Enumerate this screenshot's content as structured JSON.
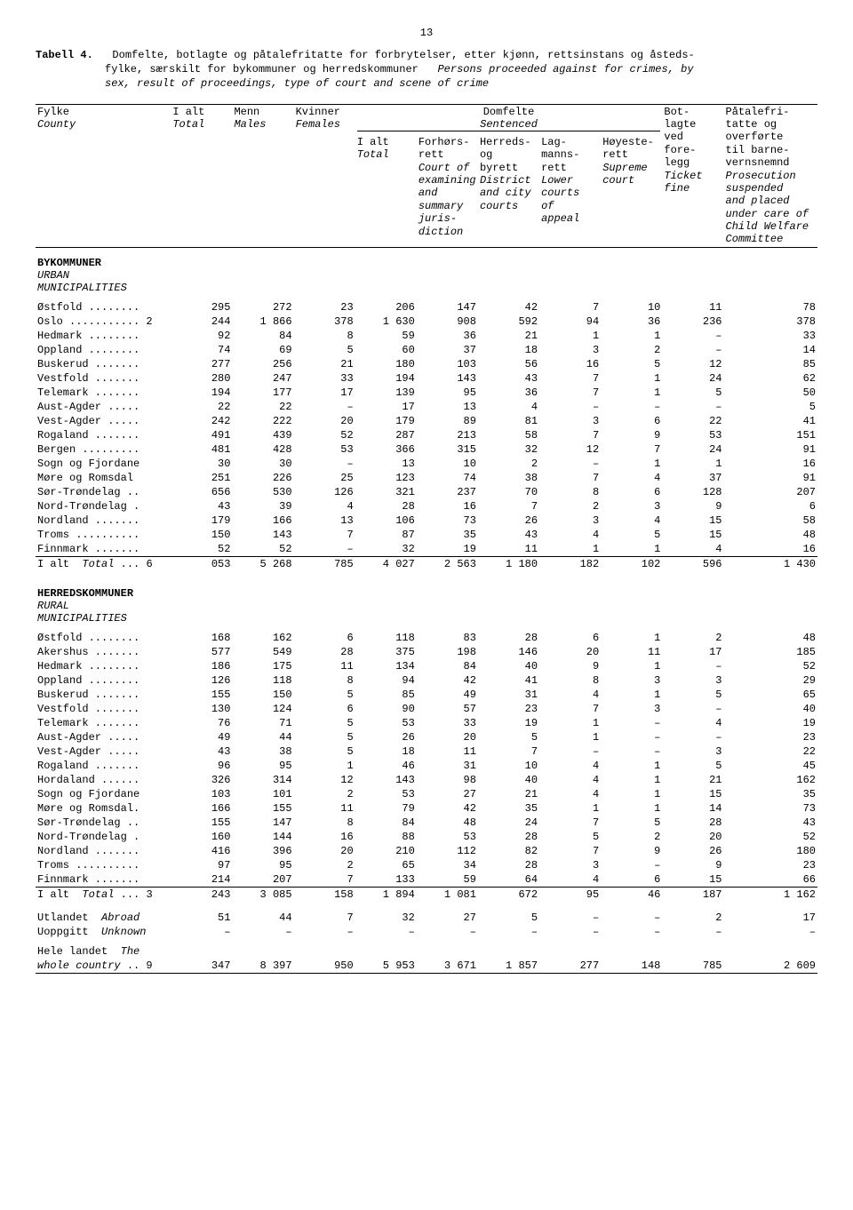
{
  "pageNumber": "13",
  "caption": {
    "label": "Tabell 4.",
    "line1": "Domfelte, botlagte og påtalefritatte for forbrytelser, etter kjønn, rettsinstans og åsteds-",
    "line2": "fylke, særskilt for bykommuner og herredskommuner",
    "line2i": "Persons proceeded against for crimes, by",
    "line3i": "sex, result of proceedings, type of court and scene of crime"
  },
  "headers": {
    "county": "Fylke",
    "countyI": "County",
    "total": "I alt",
    "totalI": "Total",
    "males": "Menn",
    "malesI": "Males",
    "females": "Kvinner",
    "femalesI": "Females",
    "sentencedGroup": "Domfelte",
    "sentencedGroupI": "Sentenced",
    "sentTotal": "I alt",
    "sentTotalI": "Total",
    "col5": "Forhørs-\nrett",
    "col5i": "Court of\nexamining\nand\nsummary\njuris-\ndiction",
    "col6": "Herreds-\nog\nbyrett",
    "col6i": "District\nand city\ncourts",
    "col7": "Lag-\nmanns-\nrett",
    "col7i": "Lower\ncourts\nof\nappeal",
    "col8": "Høyeste-\nrett",
    "col8i": "Supreme\ncourt",
    "col9": "Bot-\nlagte\nved\nfore-\nlegg",
    "col9i": "Ticket\nfine",
    "col10": "Påtalefri-\ntatte og\noverførte\ntil barne-\nvernsnemnd",
    "col10i": "Prosecution\nsuspended\nand placed\nunder care of\nChild Welfare\nCommittee"
  },
  "sections": [
    {
      "title": "BYKOMMUNER",
      "titleI1": "URBAN",
      "titleI2": "MUNICIPALITIES",
      "rows": [
        {
          "c": "Østfold ........",
          "v": [
            "295",
            "272",
            "23",
            "206",
            "147",
            "42",
            "7",
            "10",
            "11",
            "78"
          ]
        },
        {
          "c": "Oslo ........... 2",
          "v": [
            "244",
            "1 866",
            "378",
            "1 630",
            "908",
            "592",
            "94",
            "36",
            "236",
            "378"
          ],
          "merge_first": true
        },
        {
          "c": "Hedmark ........",
          "v": [
            "92",
            "84",
            "8",
            "59",
            "36",
            "21",
            "1",
            "1",
            "–",
            "33"
          ]
        },
        {
          "c": "Oppland ........",
          "v": [
            "74",
            "69",
            "5",
            "60",
            "37",
            "18",
            "3",
            "2",
            "–",
            "14"
          ]
        },
        {
          "c": "Buskerud .......",
          "v": [
            "277",
            "256",
            "21",
            "180",
            "103",
            "56",
            "16",
            "5",
            "12",
            "85"
          ]
        },
        {
          "c": "Vestfold .......",
          "v": [
            "280",
            "247",
            "33",
            "194",
            "143",
            "43",
            "7",
            "1",
            "24",
            "62"
          ]
        },
        {
          "c": "Telemark .......",
          "v": [
            "194",
            "177",
            "17",
            "139",
            "95",
            "36",
            "7",
            "1",
            "5",
            "50"
          ]
        },
        {
          "c": "Aust-Agder .....",
          "v": [
            "22",
            "22",
            "–",
            "17",
            "13",
            "4",
            "–",
            "–",
            "–",
            "5"
          ]
        },
        {
          "c": "Vest-Agder .....",
          "v": [
            "242",
            "222",
            "20",
            "179",
            "89",
            "81",
            "3",
            "6",
            "22",
            "41"
          ]
        },
        {
          "c": "Rogaland .......",
          "v": [
            "491",
            "439",
            "52",
            "287",
            "213",
            "58",
            "7",
            "9",
            "53",
            "151"
          ]
        },
        {
          "c": "Bergen .........",
          "v": [
            "481",
            "428",
            "53",
            "366",
            "315",
            "32",
            "12",
            "7",
            "24",
            "91"
          ]
        },
        {
          "c": "Sogn og Fjordane",
          "v": [
            "30",
            "30",
            "–",
            "13",
            "10",
            "2",
            "–",
            "1",
            "1",
            "16"
          ]
        },
        {
          "c": "Møre og Romsdal",
          "v": [
            "251",
            "226",
            "25",
            "123",
            "74",
            "38",
            "7",
            "4",
            "37",
            "91"
          ]
        },
        {
          "c": "Sør-Trøndelag ..",
          "v": [
            "656",
            "530",
            "126",
            "321",
            "237",
            "70",
            "8",
            "6",
            "128",
            "207"
          ]
        },
        {
          "c": "Nord-Trøndelag .",
          "v": [
            "43",
            "39",
            "4",
            "28",
            "16",
            "7",
            "2",
            "3",
            "9",
            "6"
          ]
        },
        {
          "c": "Nordland .......",
          "v": [
            "179",
            "166",
            "13",
            "106",
            "73",
            "26",
            "3",
            "4",
            "15",
            "58"
          ]
        },
        {
          "c": "Troms ..........",
          "v": [
            "150",
            "143",
            "7",
            "87",
            "35",
            "43",
            "4",
            "5",
            "15",
            "48"
          ]
        },
        {
          "c": "Finnmark .......",
          "v": [
            "52",
            "52",
            "–",
            "32",
            "19",
            "11",
            "1",
            "1",
            "4",
            "16"
          ]
        }
      ],
      "total": {
        "label": "I alt",
        "labelI": "Total",
        "pre": "... 6",
        "v": [
          "053",
          "5 268",
          "785",
          "4 027",
          "2 563",
          "1 180",
          "182",
          "102",
          "596",
          "1 430"
        ]
      }
    },
    {
      "title": "HERREDSKOMMUNER",
      "titleI1": "RURAL",
      "titleI2": "MUNICIPALITIES",
      "rows": [
        {
          "c": "Østfold ........",
          "v": [
            "168",
            "162",
            "6",
            "118",
            "83",
            "28",
            "6",
            "1",
            "2",
            "48"
          ]
        },
        {
          "c": "Akershus .......",
          "v": [
            "577",
            "549",
            "28",
            "375",
            "198",
            "146",
            "20",
            "11",
            "17",
            "185"
          ]
        },
        {
          "c": "Hedmark ........",
          "v": [
            "186",
            "175",
            "11",
            "134",
            "84",
            "40",
            "9",
            "1",
            "–",
            "52"
          ]
        },
        {
          "c": "Oppland ........",
          "v": [
            "126",
            "118",
            "8",
            "94",
            "42",
            "41",
            "8",
            "3",
            "3",
            "29"
          ]
        },
        {
          "c": "Buskerud .......",
          "v": [
            "155",
            "150",
            "5",
            "85",
            "49",
            "31",
            "4",
            "1",
            "5",
            "65"
          ]
        },
        {
          "c": "Vestfold .......",
          "v": [
            "130",
            "124",
            "6",
            "90",
            "57",
            "23",
            "7",
            "3",
            "–",
            "40"
          ]
        },
        {
          "c": "Telemark .......",
          "v": [
            "76",
            "71",
            "5",
            "53",
            "33",
            "19",
            "1",
            "–",
            "4",
            "19"
          ]
        },
        {
          "c": "Aust-Agder .....",
          "v": [
            "49",
            "44",
            "5",
            "26",
            "20",
            "5",
            "1",
            "–",
            "–",
            "23"
          ]
        },
        {
          "c": "Vest-Agder .....",
          "v": [
            "43",
            "38",
            "5",
            "18",
            "11",
            "7",
            "–",
            "–",
            "3",
            "22"
          ]
        },
        {
          "c": "Rogaland .......",
          "v": [
            "96",
            "95",
            "1",
            "46",
            "31",
            "10",
            "4",
            "1",
            "5",
            "45"
          ]
        },
        {
          "c": "Hordaland ......",
          "v": [
            "326",
            "314",
            "12",
            "143",
            "98",
            "40",
            "4",
            "1",
            "21",
            "162"
          ]
        },
        {
          "c": "Sogn og Fjordane",
          "v": [
            "103",
            "101",
            "2",
            "53",
            "27",
            "21",
            "4",
            "1",
            "15",
            "35"
          ]
        },
        {
          "c": "Møre og Romsdal.",
          "v": [
            "166",
            "155",
            "11",
            "79",
            "42",
            "35",
            "1",
            "1",
            "14",
            "73"
          ]
        },
        {
          "c": "Sør-Trøndelag ..",
          "v": [
            "155",
            "147",
            "8",
            "84",
            "48",
            "24",
            "7",
            "5",
            "28",
            "43"
          ]
        },
        {
          "c": "Nord-Trøndelag .",
          "v": [
            "160",
            "144",
            "16",
            "88",
            "53",
            "28",
            "5",
            "2",
            "20",
            "52"
          ]
        },
        {
          "c": "Nordland .......",
          "v": [
            "416",
            "396",
            "20",
            "210",
            "112",
            "82",
            "7",
            "9",
            "26",
            "180"
          ]
        },
        {
          "c": "Troms ..........",
          "v": [
            "97",
            "95",
            "2",
            "65",
            "34",
            "28",
            "3",
            "–",
            "9",
            "23"
          ]
        },
        {
          "c": "Finnmark .......",
          "v": [
            "214",
            "207",
            "7",
            "133",
            "59",
            "64",
            "4",
            "6",
            "15",
            "66"
          ]
        }
      ],
      "total": {
        "label": "I alt",
        "labelI": "Total",
        "pre": "... 3",
        "v": [
          "243",
          "3 085",
          "158",
          "1 894",
          "1 081",
          "672",
          "95",
          "46",
          "187",
          "1 162"
        ]
      }
    }
  ],
  "extraRows": [
    {
      "c": "Utlandet",
      "ci": "Abroad",
      "v": [
        "51",
        "44",
        "7",
        "32",
        "27",
        "5",
        "–",
        "–",
        "2",
        "17"
      ]
    },
    {
      "c": "Uoppgitt",
      "ci": "Unknown",
      "v": [
        "–",
        "–",
        "–",
        "–",
        "–",
        "–",
        "–",
        "–",
        "–",
        "–"
      ]
    }
  ],
  "grandTotal": {
    "c": "Hele landet",
    "ci": "The",
    "ci2": "whole country",
    "pre": ".. 9",
    "v": [
      "347",
      "8 397",
      "950",
      "5 953",
      "3 671",
      "1 857",
      "277",
      "148",
      "785",
      "2 609"
    ]
  }
}
